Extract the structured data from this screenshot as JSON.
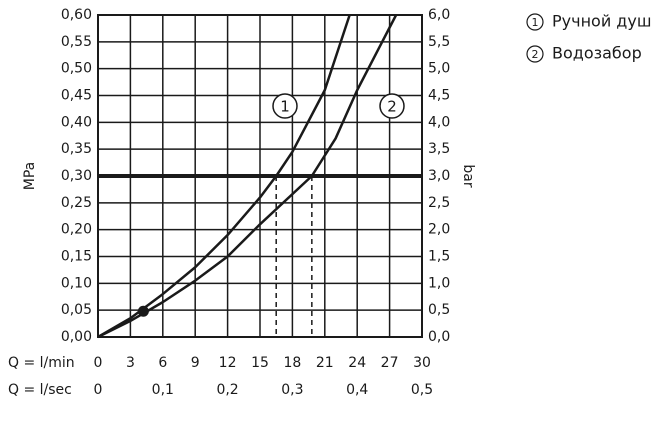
{
  "chart_data": {
    "type": "line",
    "y_label": "MPa",
    "y2_label": "bar",
    "x_label": "Q = l/min",
    "x2_label": "Q = l/sec",
    "xlim": [
      0,
      30
    ],
    "xticks": [
      0,
      3,
      6,
      9,
      12,
      15,
      18,
      21,
      24,
      27,
      30
    ],
    "x2lim": [
      0,
      0.5
    ],
    "x2ticks": [
      0,
      {
        "value": 0.1,
        "label": "0,1"
      },
      {
        "value": 0.2,
        "label": "0,2"
      },
      {
        "value": 0.3,
        "label": "0,3"
      },
      {
        "value": 0.4,
        "label": "0,4"
      },
      {
        "value": 0.5,
        "label": "0,5"
      }
    ],
    "ylim": [
      0,
      0.6
    ],
    "yticks": [
      {
        "value": 0,
        "label": "0,00"
      },
      {
        "value": 0.05,
        "label": "0,05"
      },
      {
        "value": 0.1,
        "label": "0,10"
      },
      {
        "value": 0.15,
        "label": "0,15"
      },
      {
        "value": 0.2,
        "label": "0,20"
      },
      {
        "value": 0.25,
        "label": "0,25"
      },
      {
        "value": 0.3,
        "label": "0,30"
      },
      {
        "value": 0.35,
        "label": "0,35"
      },
      {
        "value": 0.4,
        "label": "0,40"
      },
      {
        "value": 0.45,
        "label": "0,45"
      },
      {
        "value": 0.5,
        "label": "0,50"
      },
      {
        "value": 0.55,
        "label": "0,55"
      },
      {
        "value": 0.6,
        "label": "0,60"
      }
    ],
    "y2lim": [
      0,
      6
    ],
    "y2ticks": [
      {
        "value": 0,
        "label": "0,0"
      },
      {
        "value": 0.5,
        "label": "0,5"
      },
      {
        "value": 1,
        "label": "1,0"
      },
      {
        "value": 1.5,
        "label": "1,5"
      },
      {
        "value": 2,
        "label": "2,0"
      },
      {
        "value": 2.5,
        "label": "2,5"
      },
      {
        "value": 3,
        "label": "3,0"
      },
      {
        "value": 3.5,
        "label": "3,5"
      },
      {
        "value": 4,
        "label": "4,0"
      },
      {
        "value": 4.5,
        "label": "4,5"
      },
      {
        "value": 5,
        "label": "5,0"
      },
      {
        "value": 5.5,
        "label": "5,5"
      },
      {
        "value": 6,
        "label": "6,0"
      }
    ],
    "grid": true,
    "threshold": 0.3,
    "reference_x": [
      16.5,
      19.8
    ],
    "point": {
      "x": 4.2,
      "y": 0.048
    },
    "series": [
      {
        "name": "Ручной душ",
        "marker_label": "1",
        "color": "#1a1a1a",
        "x": [
          0,
          3,
          6,
          9,
          12,
          15,
          16.5,
          18,
          21,
          23.3
        ],
        "values": [
          0,
          0.035,
          0.08,
          0.13,
          0.19,
          0.26,
          0.3,
          0.345,
          0.46,
          0.6
        ]
      },
      {
        "name": "Водозабор",
        "marker_label": "2",
        "color": "#1a1a1a",
        "x": [
          0,
          3,
          6,
          9,
          12,
          15,
          19.8,
          22,
          24,
          27.6
        ],
        "values": [
          0,
          0.03,
          0.065,
          0.105,
          0.15,
          0.21,
          0.3,
          0.37,
          0.46,
          0.6
        ]
      }
    ]
  }
}
